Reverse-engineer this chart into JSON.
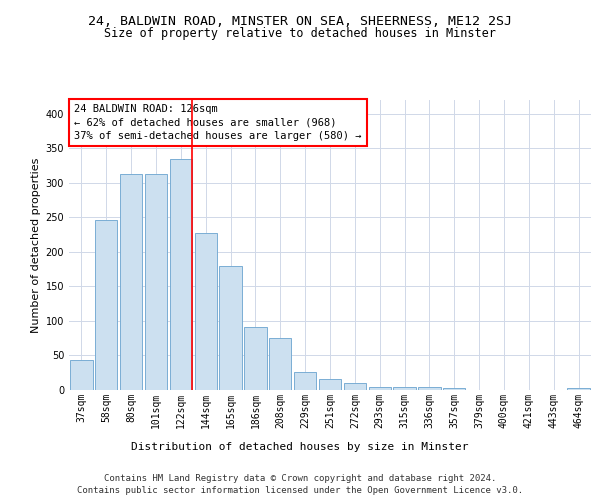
{
  "title1": "24, BALDWIN ROAD, MINSTER ON SEA, SHEERNESS, ME12 2SJ",
  "title2": "Size of property relative to detached houses in Minster",
  "xlabel": "Distribution of detached houses by size in Minster",
  "ylabel": "Number of detached properties",
  "categories": [
    "37sqm",
    "58sqm",
    "80sqm",
    "101sqm",
    "122sqm",
    "144sqm",
    "165sqm",
    "186sqm",
    "208sqm",
    "229sqm",
    "251sqm",
    "272sqm",
    "293sqm",
    "315sqm",
    "336sqm",
    "357sqm",
    "379sqm",
    "400sqm",
    "421sqm",
    "443sqm",
    "464sqm"
  ],
  "values": [
    44,
    246,
    313,
    313,
    335,
    228,
    180,
    91,
    75,
    26,
    16,
    10,
    5,
    5,
    4,
    3,
    0,
    0,
    0,
    0,
    3
  ],
  "bar_color": "#cce0f0",
  "bar_edge_color": "#7aadd4",
  "red_line_x": 4,
  "annotation_text": "24 BALDWIN ROAD: 126sqm\n← 62% of detached houses are smaller (968)\n37% of semi-detached houses are larger (580) →",
  "annotation_box_color": "white",
  "annotation_box_edge_color": "red",
  "footer1": "Contains HM Land Registry data © Crown copyright and database right 2024.",
  "footer2": "Contains public sector information licensed under the Open Government Licence v3.0.",
  "ylim": [
    0,
    420
  ],
  "grid_color": "#d0d8e8",
  "title1_fontsize": 9.5,
  "title2_fontsize": 8.5,
  "ylabel_fontsize": 8,
  "xlabel_fontsize": 8,
  "tick_fontsize": 7,
  "annotation_fontsize": 7.5,
  "footer_fontsize": 6.5,
  "bar_width": 0.9
}
